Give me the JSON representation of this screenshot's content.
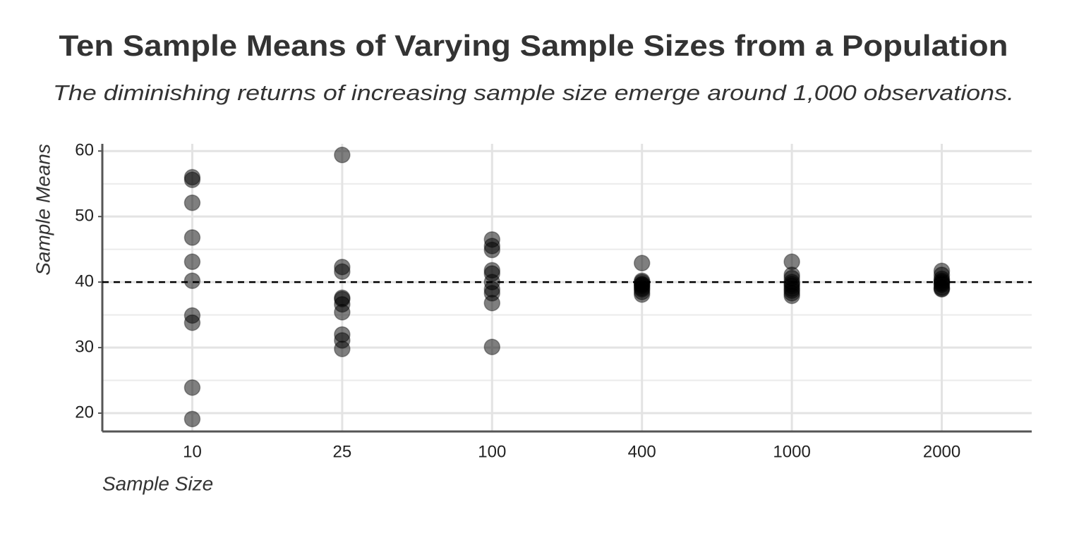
{
  "chart_data": {
    "type": "strip",
    "title": "Ten Sample Means of Varying Sample Sizes from a Population",
    "subtitle": "The diminishing returns of increasing sample size emerge around 1,000 observations.",
    "x_label": "Sample Size",
    "y_label": "Sample Means",
    "categories": [
      "10",
      "25",
      "100",
      "400",
      "1000",
      "2000"
    ],
    "values": [
      [
        56.0,
        55.6,
        52.1,
        46.8,
        43.1,
        40.2,
        34.9,
        33.8,
        23.9,
        19.1
      ],
      [
        59.4,
        42.3,
        41.6,
        37.6,
        37.4,
        36.6,
        35.4,
        32.0,
        31.1,
        29.8
      ],
      [
        46.5,
        45.5,
        44.9,
        41.8,
        41.3,
        40.0,
        38.9,
        38.3,
        36.8,
        30.1
      ],
      [
        42.9,
        40.2,
        40.0,
        39.7,
        39.6,
        39.4,
        39.1,
        38.9,
        38.5,
        38.1
      ],
      [
        43.1,
        41.1,
        40.6,
        40.0,
        39.7,
        39.4,
        39.0,
        38.7,
        38.3,
        37.9
      ],
      [
        41.7,
        41.1,
        40.5,
        40.2,
        40.0,
        39.8,
        39.6,
        39.2,
        39.0,
        38.9
      ]
    ],
    "color": "#000000",
    "hline": 40,
    "ylim": [
      17.2,
      61.1
    ],
    "yticks": [
      20,
      30,
      40,
      50,
      60
    ],
    "minor_yticks": [
      25,
      35,
      45,
      55
    ],
    "grid": true
  }
}
